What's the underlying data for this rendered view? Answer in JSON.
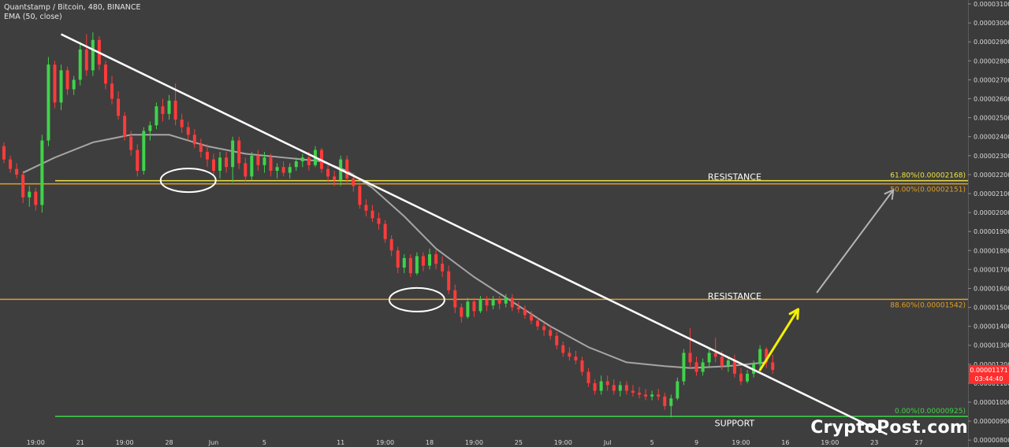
{
  "header": {
    "symbol_line": "Quantstamp / Bitcoin, 480, BINANCE",
    "indicator_line": "EMA (50, close)"
  },
  "watermark": "CryptoPost.com",
  "chart_data": {
    "type": "candlestick",
    "symbol": "Quantstamp / Bitcoin",
    "interval": "480",
    "exchange": "BINANCE",
    "ylim": [
      8.3e-06,
      3.1e-05
    ],
    "y_ticks": [
      "0.00003100",
      "0.00003000",
      "0.00002900",
      "0.00002800",
      "0.00002700",
      "0.00002600",
      "0.00002500",
      "0.00002400",
      "0.00002300",
      "0.00002200",
      "0.00002100",
      "0.00002000",
      "0.00001900",
      "0.00001800",
      "0.00001700",
      "0.00001600",
      "0.00001500",
      "0.00001400",
      "0.00001300",
      "0.00001200",
      "0.00001100",
      "0.00001000",
      "0.00000900",
      "0.00000800"
    ],
    "x_ticks": [
      {
        "label": "19:00",
        "bar": 5
      },
      {
        "label": "21",
        "bar": 12
      },
      {
        "label": "19:00",
        "bar": 19
      },
      {
        "label": "28",
        "bar": 26
      },
      {
        "label": "Jun",
        "bar": 33
      },
      {
        "label": "5",
        "bar": 41
      },
      {
        "label": "11",
        "bar": 53
      },
      {
        "label": "19:00",
        "bar": 60
      },
      {
        "label": "18",
        "bar": 67
      },
      {
        "label": "19:00",
        "bar": 74
      },
      {
        "label": "25",
        "bar": 81
      },
      {
        "label": "19:00",
        "bar": 88
      },
      {
        "label": "Jul",
        "bar": 95
      },
      {
        "label": "5",
        "bar": 102
      },
      {
        "label": "9",
        "bar": 109
      },
      {
        "label": "19:00",
        "bar": 116
      },
      {
        "label": "16",
        "bar": 123
      },
      {
        "label": "19:00",
        "bar": 130
      },
      {
        "label": "23",
        "bar": 137
      },
      {
        "label": "27",
        "bar": 144
      }
    ],
    "candles": [
      [
        2.35e-05,
        2.37e-05,
        2.26e-05,
        2.28e-05
      ],
      [
        2.28e-05,
        2.3e-05,
        2.21e-05,
        2.23e-05
      ],
      [
        2.23e-05,
        2.26e-05,
        2.18e-05,
        2.2e-05
      ],
      [
        2.2e-05,
        2.22e-05,
        2.05e-05,
        2.08e-05
      ],
      [
        2.08e-05,
        2.14e-05,
        2.03e-05,
        2.11e-05
      ],
      [
        2.11e-05,
        2.13e-05,
        2.01e-05,
        2.04e-05
      ],
      [
        2.04e-05,
        2.41e-05,
        2e-05,
        2.38e-05
      ],
      [
        2.38e-05,
        2.82e-05,
        2.35e-05,
        2.78e-05
      ],
      [
        2.78e-05,
        2.8e-05,
        2.55e-05,
        2.58e-05
      ],
      [
        2.58e-05,
        2.78e-05,
        2.54e-05,
        2.75e-05
      ],
      [
        2.75e-05,
        2.77e-05,
        2.62e-05,
        2.65e-05
      ],
      [
        2.65e-05,
        2.72e-05,
        2.62e-05,
        2.7e-05
      ],
      [
        2.7e-05,
        2.9e-05,
        2.67e-05,
        2.86e-05
      ],
      [
        2.86e-05,
        2.94e-05,
        2.72e-05,
        2.75e-05
      ],
      [
        2.75e-05,
        2.95e-05,
        2.72e-05,
        2.91e-05
      ],
      [
        2.91e-05,
        2.93e-05,
        2.75e-05,
        2.78e-05
      ],
      [
        2.78e-05,
        2.8e-05,
        2.65e-05,
        2.68e-05
      ],
      [
        2.68e-05,
        2.72e-05,
        2.57e-05,
        2.6e-05
      ],
      [
        2.6e-05,
        2.64e-05,
        2.49e-05,
        2.51e-05
      ],
      [
        2.51e-05,
        2.53e-05,
        2.38e-05,
        2.4e-05
      ],
      [
        2.4e-05,
        2.43e-05,
        2.3e-05,
        2.33e-05
      ],
      [
        2.33e-05,
        2.36e-05,
        2.19e-05,
        2.22e-05
      ],
      [
        2.22e-05,
        2.45e-05,
        2.2e-05,
        2.43e-05
      ],
      [
        2.43e-05,
        2.48e-05,
        2.38e-05,
        2.46e-05
      ],
      [
        2.46e-05,
        2.58e-05,
        2.44e-05,
        2.56e-05
      ],
      [
        2.56e-05,
        2.6e-05,
        2.48e-05,
        2.52e-05
      ],
      [
        2.52e-05,
        2.62e-05,
        2.49e-05,
        2.59e-05
      ],
      [
        2.59e-05,
        2.68e-05,
        2.46e-05,
        2.49e-05
      ],
      [
        2.49e-05,
        2.52e-05,
        2.42e-05,
        2.45e-05
      ],
      [
        2.45e-05,
        2.48e-05,
        2.38e-05,
        2.41e-05
      ],
      [
        2.41e-05,
        2.44e-05,
        2.34e-05,
        2.36e-05
      ],
      [
        2.36e-05,
        2.39e-05,
        2.29e-05,
        2.32e-05
      ],
      [
        2.32e-05,
        2.36e-05,
        2.24e-05,
        2.28e-05
      ],
      [
        2.28e-05,
        2.31e-05,
        2.19e-05,
        2.22e-05
      ],
      [
        2.22e-05,
        2.32e-05,
        2.18e-05,
        2.29e-05
      ],
      [
        2.29e-05,
        2.32e-05,
        2.21e-05,
        2.24e-05
      ],
      [
        2.24e-05,
        2.4e-05,
        2.16e-05,
        2.38e-05
      ],
      [
        2.38e-05,
        2.4e-05,
        2.23e-05,
        2.26e-05
      ],
      [
        2.26e-05,
        2.29e-05,
        2.16e-05,
        2.19e-05
      ],
      [
        2.19e-05,
        2.32e-05,
        2.17e-05,
        2.3e-05
      ],
      [
        2.3e-05,
        2.33e-05,
        2.22e-05,
        2.25e-05
      ],
      [
        2.25e-05,
        2.32e-05,
        2.21e-05,
        2.29e-05
      ],
      [
        2.29e-05,
        2.31e-05,
        2.19e-05,
        2.22e-05
      ],
      [
        2.22e-05,
        2.26e-05,
        2.18e-05,
        2.24e-05
      ],
      [
        2.24e-05,
        2.27e-05,
        2.19e-05,
        2.21e-05
      ],
      [
        2.21e-05,
        2.26e-05,
        2.18e-05,
        2.24e-05
      ],
      [
        2.24e-05,
        2.29e-05,
        2.22e-05,
        2.27e-05
      ],
      [
        2.27e-05,
        2.31e-05,
        2.24e-05,
        2.29e-05
      ],
      [
        2.29e-05,
        2.32e-05,
        2.22e-05,
        2.25e-05
      ],
      [
        2.25e-05,
        2.35e-05,
        2.24e-05,
        2.33e-05
      ],
      [
        2.33e-05,
        2.34e-05,
        2.21e-05,
        2.23e-05
      ],
      [
        2.23e-05,
        2.26e-05,
        2.16e-05,
        2.19e-05
      ],
      [
        2.19e-05,
        2.22e-05,
        2.14e-05,
        2.17e-05
      ],
      [
        2.17e-05,
        2.3e-05,
        2.14e-05,
        2.28e-05
      ],
      [
        2.28e-05,
        2.3e-05,
        2.15e-05,
        2.18e-05
      ],
      [
        2.18e-05,
        2.21e-05,
        2.11e-05,
        2.14e-05
      ],
      [
        2.14e-05,
        2.16e-05,
        2.02e-05,
        2.04e-05
      ],
      [
        2.04e-05,
        2.07e-05,
        1.98e-05,
        2.01e-05
      ],
      [
        2.01e-05,
        2.04e-05,
        1.95e-05,
        1.97e-05
      ],
      [
        1.97e-05,
        2e-05,
        1.91e-05,
        1.94e-05
      ],
      [
        1.94e-05,
        1.96e-05,
        1.84e-05,
        1.86e-05
      ],
      [
        1.86e-05,
        1.88e-05,
        1.77e-05,
        1.8e-05
      ],
      [
        1.8e-05,
        1.82e-05,
        1.68e-05,
        1.71e-05
      ],
      [
        1.71e-05,
        1.78e-05,
        1.68e-05,
        1.76e-05
      ],
      [
        1.76e-05,
        1.78e-05,
        1.66e-05,
        1.68e-05
      ],
      [
        1.68e-05,
        1.79e-05,
        1.67e-05,
        1.77e-05
      ],
      [
        1.77e-05,
        1.79e-05,
        1.69e-05,
        1.72e-05
      ],
      [
        1.72e-05,
        1.81e-05,
        1.7e-05,
        1.78e-05
      ],
      [
        1.78e-05,
        1.8e-05,
        1.7e-05,
        1.73e-05
      ],
      [
        1.73e-05,
        1.77e-05,
        1.66e-05,
        1.69e-05
      ],
      [
        1.69e-05,
        1.72e-05,
        1.57e-05,
        1.59e-05
      ],
      [
        1.59e-05,
        1.62e-05,
        1.47e-05,
        1.5e-05
      ],
      [
        1.5e-05,
        1.52e-05,
        1.42e-05,
        1.45e-05
      ],
      [
        1.45e-05,
        1.55e-05,
        1.44e-05,
        1.53e-05
      ],
      [
        1.53e-05,
        1.55e-05,
        1.45e-05,
        1.48e-05
      ],
      [
        1.48e-05,
        1.56e-05,
        1.47e-05,
        1.54e-05
      ],
      [
        1.54e-05,
        1.56e-05,
        1.48e-05,
        1.51e-05
      ],
      [
        1.51e-05,
        1.56e-05,
        1.49e-05,
        1.54e-05
      ],
      [
        1.54e-05,
        1.56e-05,
        1.49e-05,
        1.52e-05
      ],
      [
        1.52e-05,
        1.57e-05,
        1.5e-05,
        1.55e-05
      ],
      [
        1.55e-05,
        1.57e-05,
        1.48e-05,
        1.5e-05
      ],
      [
        1.5e-05,
        1.53e-05,
        1.47e-05,
        1.49e-05
      ],
      [
        1.49e-05,
        1.51e-05,
        1.44e-05,
        1.46e-05
      ],
      [
        1.46e-05,
        1.48e-05,
        1.41e-05,
        1.43e-05
      ],
      [
        1.43e-05,
        1.45e-05,
        1.38e-05,
        1.4e-05
      ],
      [
        1.4e-05,
        1.42e-05,
        1.35e-05,
        1.38e-05
      ],
      [
        1.38e-05,
        1.4e-05,
        1.33e-05,
        1.35e-05
      ],
      [
        1.35e-05,
        1.37e-05,
        1.28e-05,
        1.3e-05
      ],
      [
        1.3e-05,
        1.32e-05,
        1.24e-05,
        1.26e-05
      ],
      [
        1.26e-05,
        1.29e-05,
        1.22e-05,
        1.24e-05
      ],
      [
        1.24e-05,
        1.27e-05,
        1.2e-05,
        1.22e-05
      ],
      [
        1.22e-05,
        1.24e-05,
        1.14e-05,
        1.16e-05
      ],
      [
        1.16e-05,
        1.18e-05,
        1.08e-05,
        1.1e-05
      ],
      [
        1.1e-05,
        1.12e-05,
        1.04e-05,
        1.06e-05
      ],
      [
        1.06e-05,
        1.14e-05,
        1.04e-05,
        1.11e-05
      ],
      [
        1.11e-05,
        1.14e-05,
        1.06e-05,
        1.09e-05
      ],
      [
        1.09e-05,
        1.12e-05,
        1.04e-05,
        1.06e-05
      ],
      [
        1.06e-05,
        1.11e-05,
        1.03e-05,
        1.09e-05
      ],
      [
        1.09e-05,
        1.11e-05,
        1.04e-05,
        1.06e-05
      ],
      [
        1.06e-05,
        1.09e-05,
        1.03e-05,
        1.05e-05
      ],
      [
        1.05e-05,
        1.08e-05,
        1.02e-05,
        1.04e-05
      ],
      [
        1.04e-05,
        1.07e-05,
        1.01e-05,
        1.03e-05
      ],
      [
        1.03e-05,
        1.06e-05,
        1.01e-05,
        1.04e-05
      ],
      [
        1.04e-05,
        1.07e-05,
        1.01e-05,
        1.03e-05
      ],
      [
        1.03e-05,
        1.05e-05,
        9.6e-06,
        9.8e-06
      ],
      [
        9.8e-06,
        1.04e-05,
        9.2e-06,
        1.02e-05
      ],
      [
        1.02e-05,
        1.13e-05,
        1.01e-05,
        1.11e-05
      ],
      [
        1.11e-05,
        1.28e-05,
        1.09e-05,
        1.26e-05
      ],
      [
        1.26e-05,
        1.39e-05,
        1.18e-05,
        1.21e-05
      ],
      [
        1.21e-05,
        1.24e-05,
        1.14e-05,
        1.16e-05
      ],
      [
        1.16e-05,
        1.23e-05,
        1.14e-05,
        1.21e-05
      ],
      [
        1.21e-05,
        1.28e-05,
        1.18e-05,
        1.26e-05
      ],
      [
        1.26e-05,
        1.34e-05,
        1.21e-05,
        1.24e-05
      ],
      [
        1.24e-05,
        1.27e-05,
        1.17e-05,
        1.19e-05
      ],
      [
        1.19e-05,
        1.24e-05,
        1.16e-05,
        1.22e-05
      ],
      [
        1.22e-05,
        1.25e-05,
        1.13e-05,
        1.15e-05
      ],
      [
        1.15e-05,
        1.18e-05,
        1.09e-05,
        1.11e-05
      ],
      [
        1.11e-05,
        1.17e-05,
        1.1e-05,
        1.15e-05
      ],
      [
        1.15e-05,
        1.22e-05,
        1.13e-05,
        1.2e-05
      ],
      [
        1.2e-05,
        1.3e-05,
        1.17e-05,
        1.28e-05
      ],
      [
        1.28e-05,
        1.29e-05,
        1.18e-05,
        1.21e-05
      ],
      [
        1.21e-05,
        1.25e-05,
        1.15e-05,
        1.17e-05
      ]
    ],
    "ema": {
      "label": "EMA (50, close)",
      "points": [
        [
          3,
          2.21e-05
        ],
        [
          8,
          2.29e-05
        ],
        [
          14,
          2.37e-05
        ],
        [
          20,
          2.41e-05
        ],
        [
          26,
          2.41e-05
        ],
        [
          32,
          2.35e-05
        ],
        [
          38,
          2.31e-05
        ],
        [
          44,
          2.29e-05
        ],
        [
          50,
          2.27e-05
        ],
        [
          54,
          2.22e-05
        ],
        [
          58,
          2.13e-05
        ],
        [
          63,
          1.98e-05
        ],
        [
          68,
          1.81e-05
        ],
        [
          74,
          1.66e-05
        ],
        [
          80,
          1.53e-05
        ],
        [
          86,
          1.4e-05
        ],
        [
          92,
          1.29e-05
        ],
        [
          98,
          1.21e-05
        ],
        [
          104,
          1.19e-05
        ],
        [
          108,
          1.18e-05
        ],
        [
          114,
          1.19e-05
        ],
        [
          120,
          1.21e-05
        ]
      ]
    },
    "trendline": {
      "from": [
        9,
        2.94e-05
      ],
      "to": [
        139,
        8.3e-06
      ]
    },
    "fib_levels": [
      {
        "label": "61.80%(0.00002168)",
        "value": 2.168e-05,
        "color": "#f0e442"
      },
      {
        "label": "50.00%(0.00002151)",
        "value": 2.151e-05,
        "color": "#e0a028"
      },
      {
        "label": "88.60%(0.00001542)",
        "value": 1.542e-05,
        "color": "#e0a028"
      },
      {
        "label": "0.00%(0.00000925)",
        "value": 9.25e-06,
        "color": "#3fd34a"
      }
    ],
    "level_labels": [
      {
        "text": "RESISTANCE",
        "value": 2.19e-05,
        "bar": 115
      },
      {
        "text": "RESISTANCE",
        "value": 1.56e-05,
        "bar": 115
      },
      {
        "text": "SUPPORT",
        "value": 8.9e-06,
        "bar": 115
      }
    ],
    "ellipses": [
      {
        "bar": 29,
        "value": 2.17e-05
      },
      {
        "bar": 65,
        "value": 1.54e-05
      }
    ],
    "arrows": [
      {
        "from": [
          119,
          1.17e-05
        ],
        "to": [
          125,
          1.49e-05
        ],
        "color": "#f4f000"
      },
      {
        "from": [
          128,
          1.58e-05
        ],
        "to": [
          140,
          2.12e-05
        ],
        "color": "#b4b4b4"
      }
    ],
    "last_price": {
      "value": "0.00001171",
      "countdown": "03:44:40",
      "color": "#ff2e2e"
    },
    "colors": {
      "up": "#3fd34a",
      "down": "#ff3b3b",
      "ema": "#a5a5a5",
      "trendline": "#ffffff",
      "background": "#3e3e3e"
    }
  }
}
